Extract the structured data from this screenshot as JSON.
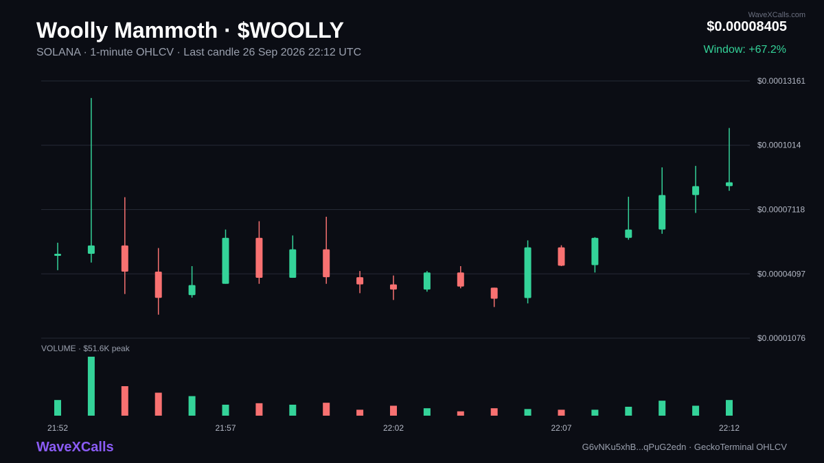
{
  "header": {
    "title": "Woolly Mammoth · $WOOLLY",
    "subtitle": "SOLANA · 1-minute OHLCV · Last candle 26 Sep 2026 22:12 UTC",
    "watermark": "WaveXCalls.com",
    "price": "$0.00008405",
    "window_change": "Window: +67.2%"
  },
  "footer": {
    "brand": "WaveXCalls",
    "note": "G6vNKu5xhB...qPuG2edn · GeckoTerminal OHLCV"
  },
  "colors": {
    "up": "#34d399",
    "down": "#f87171",
    "brand": "#8b5cf6",
    "background": "#0b0d14"
  },
  "chart_data": {
    "type": "candlestick",
    "interval": "1-minute",
    "price_axis": {
      "ticks": [
        0.00013161,
        0.0001014,
        7.118e-05,
        4.097e-05,
        1.076e-05
      ],
      "tick_labels": [
        "$0.00013161",
        "$0.0001014",
        "$0.00007118",
        "$0.00004097",
        "$0.00001076"
      ],
      "range": [
        1.076e-05,
        0.00013161
      ],
      "grid": true
    },
    "time_axis": {
      "tick_labels": [
        "21:52",
        "21:57",
        "22:02",
        "22:07",
        "22:12"
      ]
    },
    "volume_label": "VOLUME · $51.6K peak",
    "volume_peak": 51600,
    "candles": [
      {
        "time": "21:52",
        "open": 4.95e-05,
        "high": 5.56e-05,
        "low": 4.27e-05,
        "close": 5.04e-05,
        "volume": 13700
      },
      {
        "time": "21:53",
        "open": 5.04e-05,
        "high": 0.0001236,
        "low": 4.63e-05,
        "close": 5.43e-05,
        "volume": 51600
      },
      {
        "time": "21:54",
        "open": 5.43e-05,
        "high": 7.7e-05,
        "low": 3.15e-05,
        "close": 4.2e-05,
        "volume": 25800
      },
      {
        "time": "21:55",
        "open": 4.2e-05,
        "high": 5.31e-05,
        "low": 2.18e-05,
        "close": 2.97e-05,
        "volume": 20100
      },
      {
        "time": "21:56",
        "open": 3.1e-05,
        "high": 4.46e-05,
        "low": 2.98e-05,
        "close": 3.57e-05,
        "volume": 17100
      },
      {
        "time": "21:57",
        "open": 3.63e-05,
        "high": 6.18e-05,
        "low": 3.63e-05,
        "close": 5.79e-05,
        "volume": 9600
      },
      {
        "time": "21:58",
        "open": 5.79e-05,
        "high": 6.57e-05,
        "low": 3.63e-05,
        "close": 3.91e-05,
        "volume": 10900
      },
      {
        "time": "21:59",
        "open": 3.91e-05,
        "high": 5.9e-05,
        "low": 3.91e-05,
        "close": 5.25e-05,
        "volume": 9600
      },
      {
        "time": "22:00",
        "open": 5.25e-05,
        "high": 6.78e-05,
        "low": 3.63e-05,
        "close": 3.94e-05,
        "volume": 11300
      },
      {
        "time": "22:01",
        "open": 3.94e-05,
        "high": 4.23e-05,
        "low": 3.19e-05,
        "close": 3.6e-05,
        "volume": 5200
      },
      {
        "time": "22:02",
        "open": 3.6e-05,
        "high": 4.02e-05,
        "low": 2.87e-05,
        "close": 3.36e-05,
        "volume": 8700
      },
      {
        "time": "22:03",
        "open": 3.36e-05,
        "high": 4.23e-05,
        "low": 3.26e-05,
        "close": 4.16e-05,
        "volume": 6500
      },
      {
        "time": "22:04",
        "open": 4.16e-05,
        "high": 4.46e-05,
        "low": 3.42e-05,
        "close": 3.5e-05,
        "volume": 3800
      },
      {
        "time": "22:05",
        "open": 3.45e-05,
        "high": 3.45e-05,
        "low": 2.54e-05,
        "close": 2.93e-05,
        "volume": 6500
      },
      {
        "time": "22:06",
        "open": 2.96e-05,
        "high": 5.67e-05,
        "low": 2.71e-05,
        "close": 5.34e-05,
        "volume": 5800
      },
      {
        "time": "22:07",
        "open": 5.34e-05,
        "high": 5.44e-05,
        "low": 4.46e-05,
        "close": 4.48e-05,
        "volume": 5200
      },
      {
        "time": "22:08",
        "open": 4.51e-05,
        "high": 5.82e-05,
        "low": 4.16e-05,
        "close": 5.79e-05,
        "volume": 5200
      },
      {
        "time": "22:09",
        "open": 5.79e-05,
        "high": 7.72e-05,
        "low": 5.7e-05,
        "close": 6.18e-05,
        "volume": 7800
      },
      {
        "time": "22:10",
        "open": 6.18e-05,
        "high": 9.1e-05,
        "low": 5.98e-05,
        "close": 7.8e-05,
        "volume": 13100
      },
      {
        "time": "22:11",
        "open": 7.8e-05,
        "high": 9.17e-05,
        "low": 6.96e-05,
        "close": 8.22e-05,
        "volume": 8700
      },
      {
        "time": "22:12",
        "open": 8.22e-05,
        "high": 0.0001095,
        "low": 8e-05,
        "close": 8.4e-05,
        "volume": 13700
      }
    ]
  }
}
